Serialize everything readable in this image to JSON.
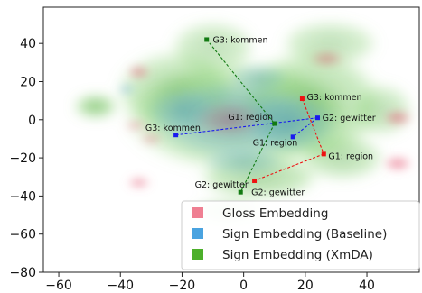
{
  "chart_data": {
    "type": "scatter",
    "title": "",
    "xlabel": "",
    "ylabel": "",
    "xlim": [
      -65,
      57
    ],
    "ylim": [
      -80,
      59
    ],
    "x_ticks": [
      -60,
      -40,
      -20,
      0,
      20,
      40
    ],
    "y_ticks": [
      -80,
      -60,
      -40,
      -20,
      0,
      20,
      40
    ],
    "grid": false,
    "legend_position": "bottom-right",
    "colors": {
      "gloss": "#e8607a",
      "baseline": "#3fa0e0",
      "xmda": "#4caf2a",
      "red_marker": "#ee1111",
      "blue_marker": "#1a1aee",
      "green_marker": "#127a12"
    },
    "legend": [
      {
        "key": "gloss",
        "label": "Gloss Embedding"
      },
      {
        "key": "baseline",
        "label": "Sign Embedding (Baseline)"
      },
      {
        "key": "xmda",
        "label": "Sign Embedding (XmDA)"
      }
    ],
    "density_blobs": {
      "xmda": [
        {
          "x": -2,
          "y": 2,
          "rx": 38,
          "ry": 30,
          "a": 0.55
        },
        {
          "x": 22,
          "y": 8,
          "rx": 24,
          "ry": 30,
          "a": 0.5
        },
        {
          "x": -22,
          "y": 15,
          "rx": 20,
          "ry": 22,
          "a": 0.45
        },
        {
          "x": 5,
          "y": -30,
          "rx": 20,
          "ry": 12,
          "a": 0.5
        },
        {
          "x": 32,
          "y": -20,
          "rx": 14,
          "ry": 12,
          "a": 0.45
        },
        {
          "x": -10,
          "y": 38,
          "rx": 14,
          "ry": 14,
          "a": 0.4
        },
        {
          "x": 28,
          "y": 40,
          "rx": 16,
          "ry": 12,
          "a": 0.4
        },
        {
          "x": -48,
          "y": 7,
          "rx": 7,
          "ry": 6,
          "a": 0.75
        },
        {
          "x": -5,
          "y": -48,
          "rx": 12,
          "ry": 6,
          "a": 0.4
        },
        {
          "x": 45,
          "y": 5,
          "rx": 10,
          "ry": 14,
          "a": 0.4
        }
      ],
      "baseline": [
        {
          "x": -3,
          "y": 0,
          "rx": 28,
          "ry": 22,
          "a": 0.55
        },
        {
          "x": 15,
          "y": -2,
          "rx": 16,
          "ry": 16,
          "a": 0.5
        },
        {
          "x": -20,
          "y": 5,
          "rx": 12,
          "ry": 12,
          "a": 0.4
        },
        {
          "x": 5,
          "y": 22,
          "rx": 10,
          "ry": 8,
          "a": 0.4
        },
        {
          "x": 0,
          "y": -22,
          "rx": 14,
          "ry": 8,
          "a": 0.4
        },
        {
          "x": -38,
          "y": 16,
          "rx": 3,
          "ry": 2.5,
          "a": 0.6
        }
      ],
      "gloss": [
        {
          "x": 50,
          "y": 1,
          "rx": 5,
          "ry": 4,
          "a": 0.75
        },
        {
          "x": 50,
          "y": -23,
          "rx": 5,
          "ry": 4,
          "a": 0.75
        },
        {
          "x": -34,
          "y": 25,
          "rx": 4,
          "ry": 3.5,
          "a": 0.7
        },
        {
          "x": -34,
          "y": -33,
          "rx": 4,
          "ry": 3,
          "a": 0.7
        },
        {
          "x": 27,
          "y": 32,
          "rx": 6,
          "ry": 4,
          "a": 0.6
        },
        {
          "x": -5,
          "y": 0,
          "rx": 12,
          "ry": 10,
          "a": 0.35
        },
        {
          "x": -30,
          "y": -10,
          "rx": 4,
          "ry": 3,
          "a": 0.5
        },
        {
          "x": -35,
          "y": -3,
          "rx": 4,
          "ry": 3,
          "a": 0.45
        }
      ]
    },
    "series": [
      {
        "key": "red",
        "points": [
          {
            "label": "G3: kommen",
            "x": 19,
            "y": 11,
            "label_dx": 4,
            "label_dy": 0
          },
          {
            "label": "G1: region",
            "x": 26,
            "y": -18,
            "label_dx": 4,
            "label_dy": 0
          },
          {
            "label": "G2: gewitter",
            "x": 3.5,
            "y": -32,
            "label_dx": -2,
            "label_dy": -5
          }
        ]
      },
      {
        "key": "blue",
        "points": [
          {
            "label": "G3: kommen",
            "x": -22,
            "y": -8,
            "label_dx": -4,
            "label_dy": 5
          },
          {
            "label": "G2: gewitter",
            "x": 24,
            "y": 1,
            "label_dx": 4,
            "label_dy": 0
          },
          {
            "label": "G1: region",
            "x": 16,
            "y": -9,
            "label_dx": -5,
            "label_dy": -4
          }
        ]
      },
      {
        "key": "green",
        "points": [
          {
            "label": "G3: kommen",
            "x": -12,
            "y": 42,
            "label_dx": 4,
            "label_dy": 0
          },
          {
            "label": "G1: region",
            "x": 10,
            "y": -2,
            "label_dx": -3,
            "label_dy": 4
          },
          {
            "label": "G2: gewitter",
            "x": -1,
            "y": -38,
            "label_dx": -3,
            "label_dy": 4
          }
        ]
      }
    ],
    "annotation_labels": [
      {
        "series": "green",
        "text": "G3: kommen",
        "x": -10,
        "y": 42,
        "anchor": "start"
      },
      {
        "series": "red",
        "text": "G3: kommen",
        "x": 20.5,
        "y": 12,
        "anchor": "start"
      },
      {
        "series": "green",
        "text": "G1: region",
        "x": 9.5,
        "y": 1.5,
        "anchor": "end"
      },
      {
        "series": "blue",
        "text": "G2: gewitter",
        "x": 25.5,
        "y": 1,
        "anchor": "start"
      },
      {
        "series": "blue",
        "text": "G3: kommen",
        "x": -14,
        "y": -4,
        "anchor": "end"
      },
      {
        "series": "blue",
        "text": "G1: region",
        "x": 17.5,
        "y": -12,
        "anchor": "end"
      },
      {
        "series": "red",
        "text": "G1: region",
        "x": 27.5,
        "y": -19,
        "anchor": "start"
      },
      {
        "series": "green",
        "text": "G2: gewitter",
        "x": 1.5,
        "y": -34,
        "anchor": "end"
      },
      {
        "series": "red",
        "text": "G2: gewitter",
        "x": 2.5,
        "y": -38,
        "anchor": "start"
      }
    ]
  }
}
